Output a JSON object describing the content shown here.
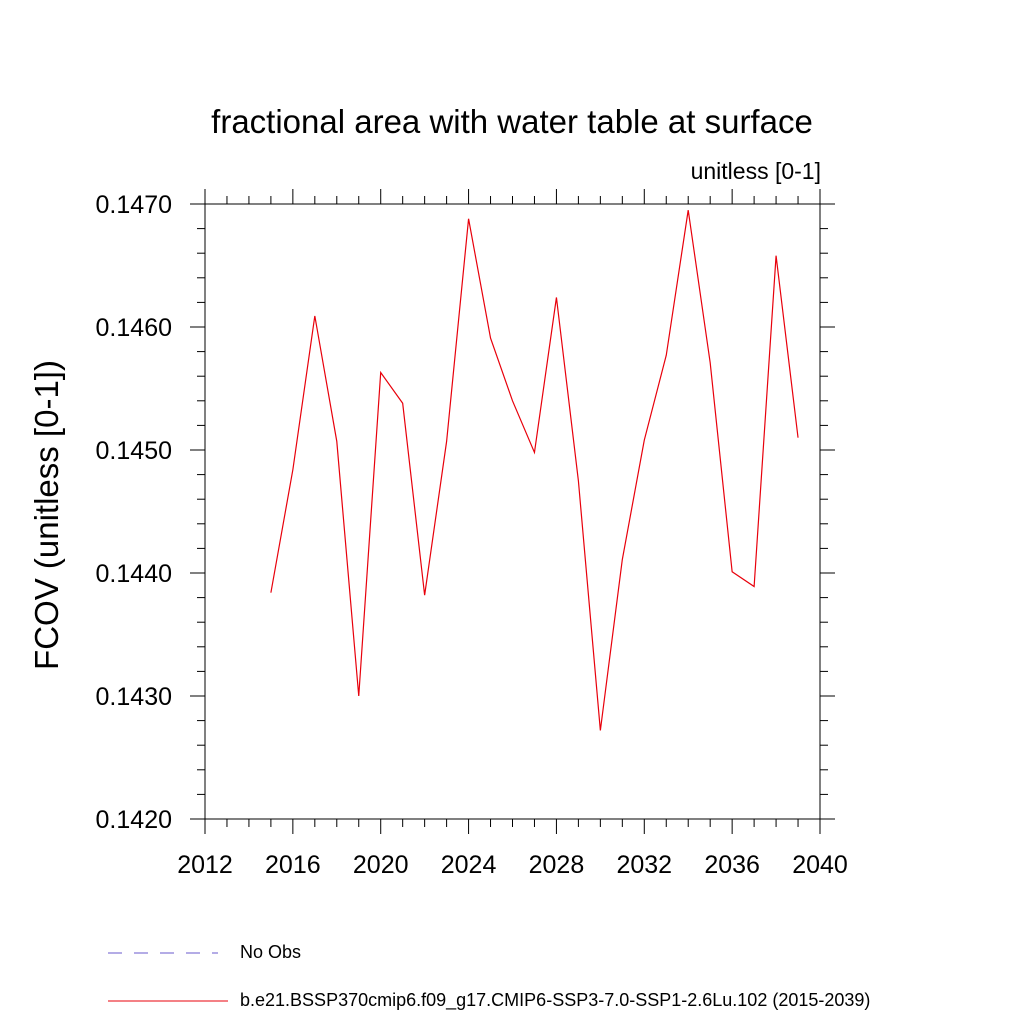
{
  "chart_data": {
    "type": "line",
    "title": "fractional area with water table at surface",
    "units_label": "unitless [0-1]",
    "ylabel": "FCOV  (unitless [0-1])",
    "xlabel": "",
    "xlim": [
      2012,
      2040
    ],
    "ylim": [
      0.142,
      0.147
    ],
    "x_ticks": [
      2012,
      2016,
      2020,
      2024,
      2028,
      2032,
      2036,
      2040
    ],
    "x_tick_labels": [
      "2012",
      "2016",
      "2020",
      "2024",
      "2028",
      "2032",
      "2036",
      "2040"
    ],
    "y_ticks": [
      0.142,
      0.143,
      0.144,
      0.145,
      0.146,
      0.147
    ],
    "y_tick_labels": [
      "0.1420",
      "0.1430",
      "0.1440",
      "0.1450",
      "0.1460",
      "0.1470"
    ],
    "grid": false,
    "legend_position": "bottom",
    "series": [
      {
        "name": "b.e21.BSSP370cmip6.f09_g17.CMIP6-SSP3-7.0-SSP1-2.6Lu.102 (2015-2039)",
        "color": "#e8000b",
        "style": "solid",
        "x": [
          2015,
          2016,
          2017,
          2018,
          2019,
          2020,
          2021,
          2022,
          2023,
          2024,
          2025,
          2026,
          2027,
          2028,
          2029,
          2030,
          2031,
          2032,
          2033,
          2034,
          2035,
          2036,
          2037,
          2038,
          2039
        ],
        "values": [
          0.14384,
          0.14484,
          0.14609,
          0.14507,
          0.143,
          0.14563,
          0.14538,
          0.14382,
          0.14507,
          0.14688,
          0.14591,
          0.1454,
          0.14498,
          0.14624,
          0.14475,
          0.14272,
          0.14411,
          0.14508,
          0.14577,
          0.14695,
          0.14571,
          0.14401,
          0.14389,
          0.14658,
          0.1451
        ]
      }
    ],
    "legend": [
      {
        "label": "No Obs",
        "color": "#6a5acd",
        "style": "dashed"
      },
      {
        "label": "b.e21.BSSP370cmip6.f09_g17.CMIP6-SSP3-7.0-SSP1-2.6Lu.102 (2015-2039)",
        "color": "#e8000b",
        "style": "solid"
      }
    ]
  }
}
